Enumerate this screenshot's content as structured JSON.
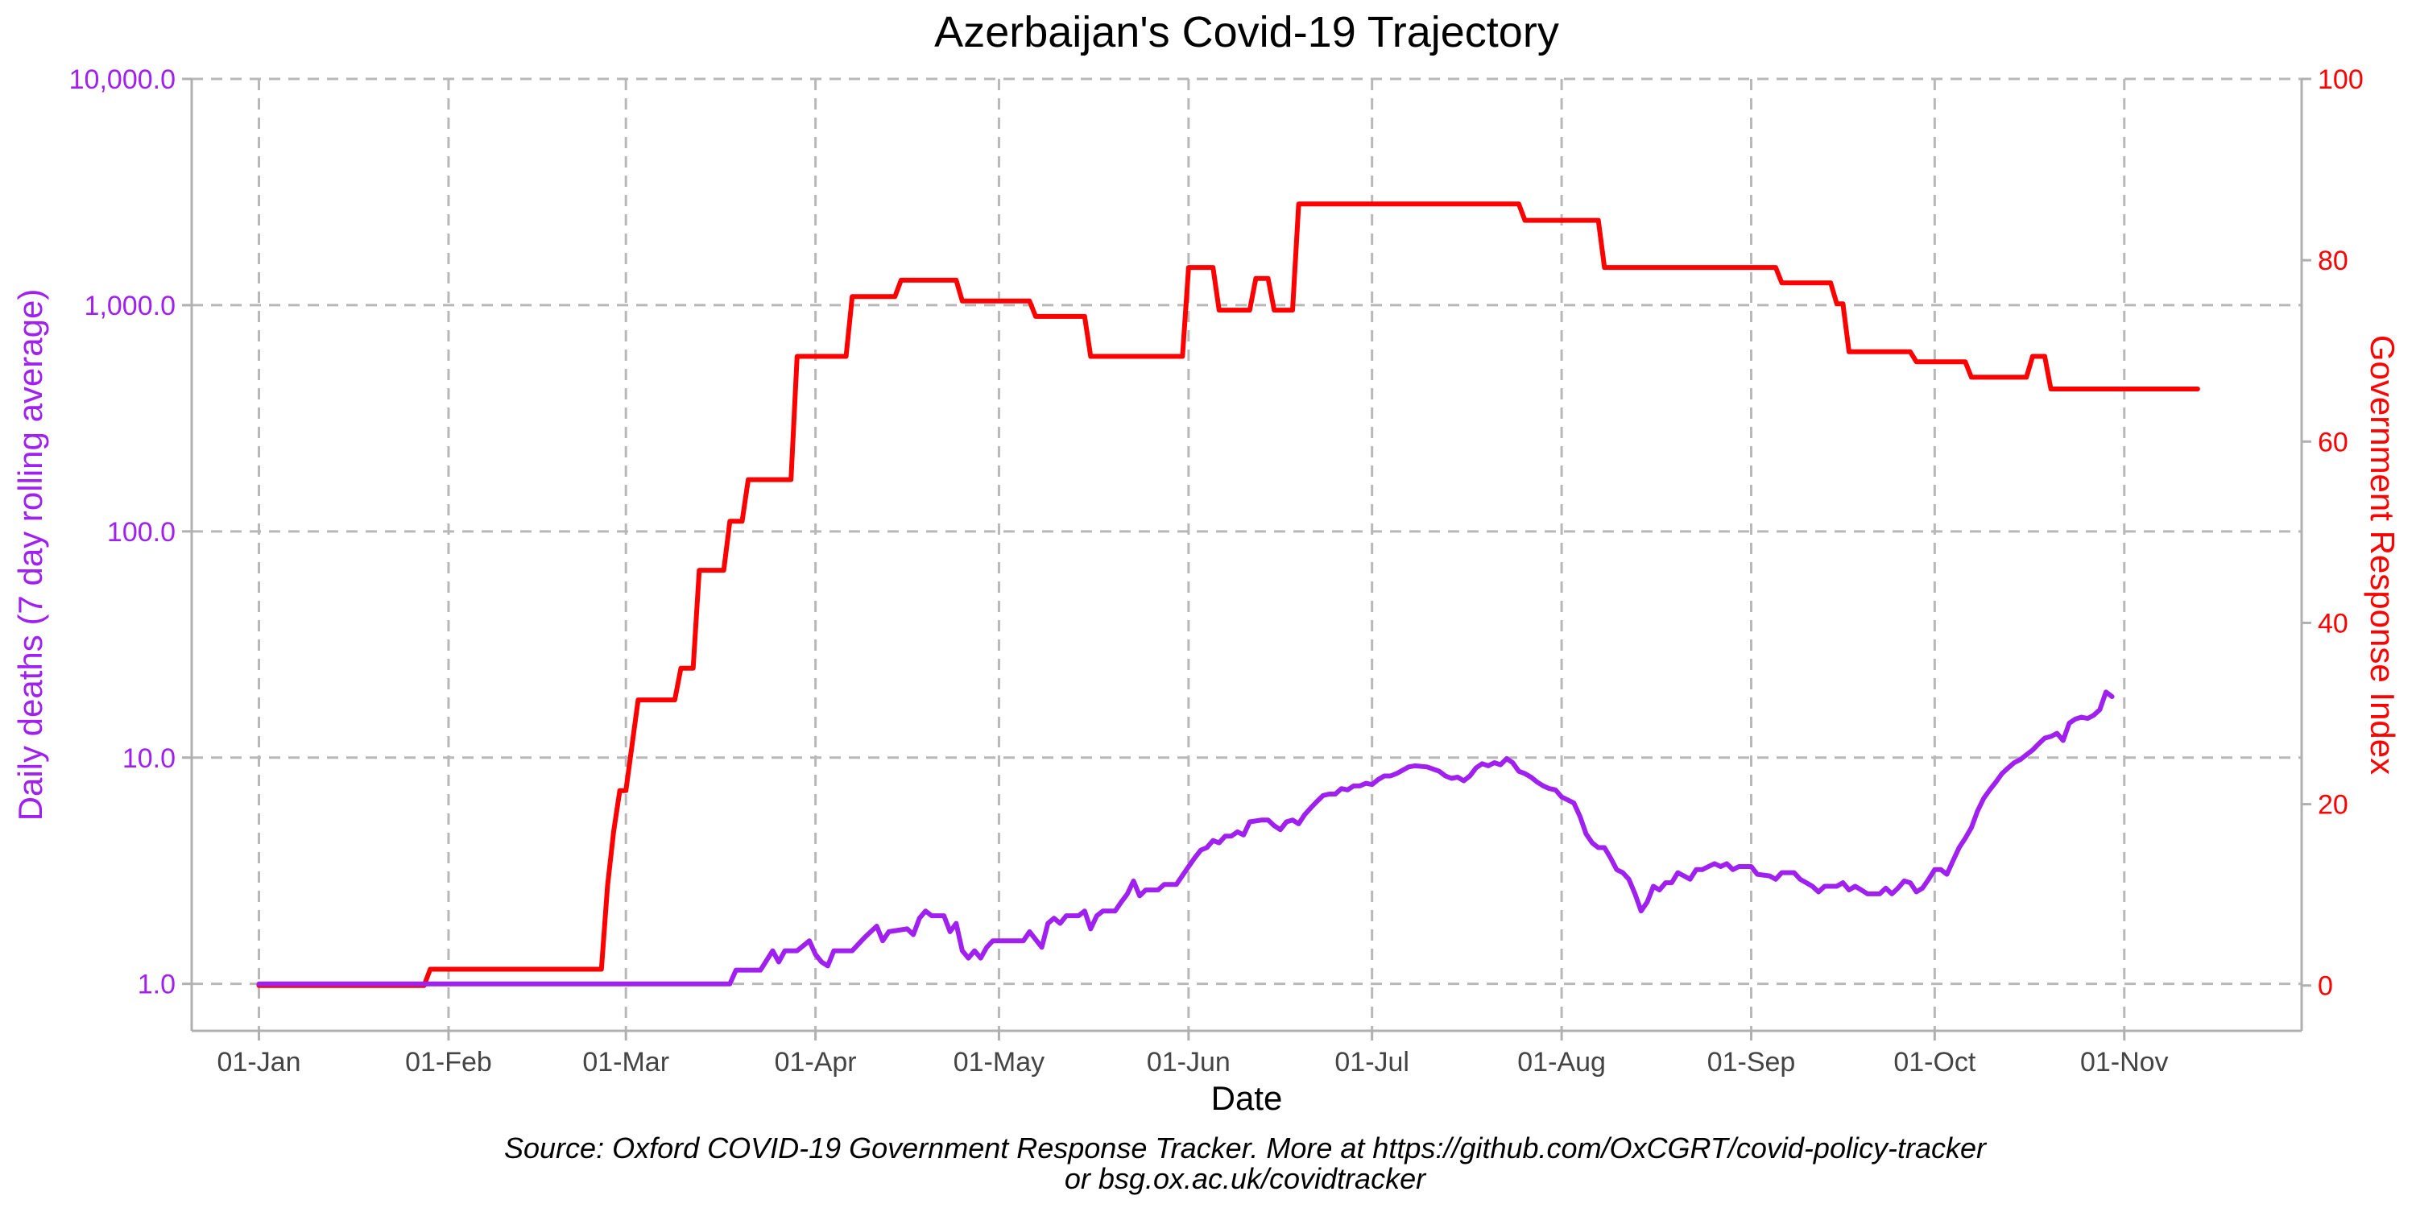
{
  "colors": {
    "deaths": "#a020f0",
    "gri": "#ff0000",
    "text": "#000000",
    "tick_text": "#444444",
    "grid": "#b8b8b8",
    "axis": "#b0b0b0"
  },
  "chart_data": {
    "type": "line",
    "title": "Azerbaijan's Covid-19 Trajectory",
    "xlabel": "Date",
    "ylabel_left": "Daily deaths (7 day rolling average)",
    "ylabel_right": "Government Response Index",
    "x_ticks": [
      "01-Jan",
      "01-Feb",
      "01-Mar",
      "01-Apr",
      "01-May",
      "01-Jun",
      "01-Jul",
      "01-Aug",
      "01-Sep",
      "01-Oct",
      "01-Nov"
    ],
    "y_left_ticks": [
      "1.0",
      "10.0",
      "100.0",
      "1,000.0",
      "10,000.0"
    ],
    "y_left_tick_values": [
      1,
      10,
      100,
      1000,
      10000
    ],
    "y_left_scale": "log10",
    "y_left_range": [
      0.62,
      10000
    ],
    "y_right_ticks": [
      "0",
      "20",
      "40",
      "60",
      "80",
      "100"
    ],
    "y_right_tick_values": [
      0,
      20,
      40,
      60,
      80,
      100
    ],
    "y_right_range": [
      -5,
      100
    ],
    "x_range": [
      "2019-12-21",
      "2020-11-30"
    ],
    "grid": true,
    "series": [
      {
        "name": "Daily deaths (7 day rolling average)",
        "axis": "left",
        "color": "#a020f0",
        "points": [
          [
            "2020-01-01",
            1.0
          ],
          [
            "2020-03-18",
            1.0
          ],
          [
            "2020-03-19",
            1.15
          ],
          [
            "2020-03-23",
            1.15
          ],
          [
            "2020-03-25",
            1.4
          ],
          [
            "2020-03-26",
            1.25
          ],
          [
            "2020-03-27",
            1.4
          ],
          [
            "2020-03-29",
            1.4
          ],
          [
            "2020-03-31",
            1.55
          ],
          [
            "2020-04-01",
            1.35
          ],
          [
            "2020-04-02",
            1.25
          ],
          [
            "2020-04-03",
            1.2
          ],
          [
            "2020-04-04",
            1.4
          ],
          [
            "2020-04-07",
            1.4
          ],
          [
            "2020-04-09",
            1.6
          ],
          [
            "2020-04-11",
            1.8
          ],
          [
            "2020-04-12",
            1.55
          ],
          [
            "2020-04-13",
            1.7
          ],
          [
            "2020-04-16",
            1.75
          ],
          [
            "2020-04-17",
            1.65
          ],
          [
            "2020-04-18",
            1.95
          ],
          [
            "2020-04-19",
            2.1
          ],
          [
            "2020-04-20",
            2.0
          ],
          [
            "2020-04-22",
            2.0
          ],
          [
            "2020-04-23",
            1.7
          ],
          [
            "2020-04-24",
            1.85
          ],
          [
            "2020-04-25",
            1.4
          ],
          [
            "2020-04-26",
            1.3
          ],
          [
            "2020-04-27",
            1.4
          ],
          [
            "2020-04-28",
            1.3
          ],
          [
            "2020-04-29",
            1.45
          ],
          [
            "2020-04-30",
            1.55
          ],
          [
            "2020-05-05",
            1.55
          ],
          [
            "2020-05-06",
            1.7
          ],
          [
            "2020-05-08",
            1.45
          ],
          [
            "2020-05-09",
            1.85
          ],
          [
            "2020-05-10",
            1.95
          ],
          [
            "2020-05-11",
            1.85
          ],
          [
            "2020-05-12",
            2.0
          ],
          [
            "2020-05-14",
            2.0
          ],
          [
            "2020-05-15",
            2.1
          ],
          [
            "2020-05-16",
            1.75
          ],
          [
            "2020-05-17",
            2.0
          ],
          [
            "2020-05-18",
            2.1
          ],
          [
            "2020-05-20",
            2.1
          ],
          [
            "2020-05-21",
            2.3
          ],
          [
            "2020-05-22",
            2.5
          ],
          [
            "2020-05-23",
            2.85
          ],
          [
            "2020-05-24",
            2.45
          ],
          [
            "2020-05-25",
            2.6
          ],
          [
            "2020-05-27",
            2.6
          ],
          [
            "2020-05-28",
            2.75
          ],
          [
            "2020-05-30",
            2.75
          ],
          [
            "2020-06-01",
            3.3
          ],
          [
            "2020-06-02",
            3.6
          ],
          [
            "2020-06-03",
            3.9
          ],
          [
            "2020-06-04",
            4.0
          ],
          [
            "2020-06-05",
            4.3
          ],
          [
            "2020-06-06",
            4.2
          ],
          [
            "2020-06-07",
            4.5
          ],
          [
            "2020-06-08",
            4.5
          ],
          [
            "2020-06-09",
            4.7
          ],
          [
            "2020-06-10",
            4.55
          ],
          [
            "2020-06-11",
            5.2
          ],
          [
            "2020-06-13",
            5.3
          ],
          [
            "2020-06-14",
            5.3
          ],
          [
            "2020-06-15",
            5.0
          ],
          [
            "2020-06-16",
            4.8
          ],
          [
            "2020-06-17",
            5.2
          ],
          [
            "2020-06-18",
            5.3
          ],
          [
            "2020-06-19",
            5.1
          ],
          [
            "2020-06-20",
            5.6
          ],
          [
            "2020-06-21",
            6.0
          ],
          [
            "2020-06-22",
            6.4
          ],
          [
            "2020-06-23",
            6.8
          ],
          [
            "2020-06-24",
            6.9
          ],
          [
            "2020-06-25",
            6.9
          ],
          [
            "2020-06-26",
            7.3
          ],
          [
            "2020-06-27",
            7.2
          ],
          [
            "2020-06-28",
            7.5
          ],
          [
            "2020-06-29",
            7.5
          ],
          [
            "2020-06-30",
            7.7
          ],
          [
            "2020-07-01",
            7.6
          ],
          [
            "2020-07-02",
            8.0
          ],
          [
            "2020-07-03",
            8.3
          ],
          [
            "2020-07-04",
            8.3
          ],
          [
            "2020-07-05",
            8.5
          ],
          [
            "2020-07-06",
            8.8
          ],
          [
            "2020-07-07",
            9.1
          ],
          [
            "2020-07-08",
            9.2
          ],
          [
            "2020-07-10",
            9.1
          ],
          [
            "2020-07-12",
            8.7
          ],
          [
            "2020-07-13",
            8.3
          ],
          [
            "2020-07-14",
            8.1
          ],
          [
            "2020-07-15",
            8.2
          ],
          [
            "2020-07-16",
            7.9
          ],
          [
            "2020-07-17",
            8.3
          ],
          [
            "2020-07-18",
            9.0
          ],
          [
            "2020-07-19",
            9.4
          ],
          [
            "2020-07-20",
            9.2
          ],
          [
            "2020-07-21",
            9.5
          ],
          [
            "2020-07-22",
            9.3
          ],
          [
            "2020-07-23",
            9.9
          ],
          [
            "2020-07-24",
            9.5
          ],
          [
            "2020-07-25",
            8.7
          ],
          [
            "2020-07-26",
            8.5
          ],
          [
            "2020-07-27",
            8.2
          ],
          [
            "2020-07-28",
            7.8
          ],
          [
            "2020-07-29",
            7.5
          ],
          [
            "2020-07-30",
            7.3
          ],
          [
            "2020-07-31",
            7.2
          ],
          [
            "2020-08-01",
            6.7
          ],
          [
            "2020-08-02",
            6.5
          ],
          [
            "2020-08-03",
            6.3
          ],
          [
            "2020-08-04",
            5.5
          ],
          [
            "2020-08-05",
            4.6
          ],
          [
            "2020-08-06",
            4.2
          ],
          [
            "2020-08-07",
            4.0
          ],
          [
            "2020-08-08",
            4.0
          ],
          [
            "2020-08-09",
            3.6
          ],
          [
            "2020-08-10",
            3.2
          ],
          [
            "2020-08-11",
            3.1
          ],
          [
            "2020-08-12",
            2.9
          ],
          [
            "2020-08-13",
            2.5
          ],
          [
            "2020-08-14",
            2.1
          ],
          [
            "2020-08-15",
            2.3
          ],
          [
            "2020-08-16",
            2.7
          ],
          [
            "2020-08-17",
            2.6
          ],
          [
            "2020-08-18",
            2.8
          ],
          [
            "2020-08-19",
            2.8
          ],
          [
            "2020-08-20",
            3.1
          ],
          [
            "2020-08-21",
            3.0
          ],
          [
            "2020-08-22",
            2.9
          ],
          [
            "2020-08-23",
            3.2
          ],
          [
            "2020-08-24",
            3.2
          ],
          [
            "2020-08-25",
            3.3
          ],
          [
            "2020-08-26",
            3.4
          ],
          [
            "2020-08-27",
            3.3
          ],
          [
            "2020-08-28",
            3.4
          ],
          [
            "2020-08-29",
            3.2
          ],
          [
            "2020-08-30",
            3.3
          ],
          [
            "2020-09-01",
            3.3
          ],
          [
            "2020-09-02",
            3.05
          ],
          [
            "2020-09-04",
            3.0
          ],
          [
            "2020-09-05",
            2.9
          ],
          [
            "2020-09-06",
            3.1
          ],
          [
            "2020-09-08",
            3.1
          ],
          [
            "2020-09-09",
            2.9
          ],
          [
            "2020-09-10",
            2.8
          ],
          [
            "2020-09-11",
            2.7
          ],
          [
            "2020-09-12",
            2.55
          ],
          [
            "2020-09-13",
            2.7
          ],
          [
            "2020-09-15",
            2.7
          ],
          [
            "2020-09-16",
            2.8
          ],
          [
            "2020-09-17",
            2.6
          ],
          [
            "2020-09-18",
            2.7
          ],
          [
            "2020-09-19",
            2.6
          ],
          [
            "2020-09-20",
            2.5
          ],
          [
            "2020-09-22",
            2.5
          ],
          [
            "2020-09-23",
            2.65
          ],
          [
            "2020-09-24",
            2.5
          ],
          [
            "2020-09-25",
            2.65
          ],
          [
            "2020-09-26",
            2.85
          ],
          [
            "2020-09-27",
            2.8
          ],
          [
            "2020-09-28",
            2.55
          ],
          [
            "2020-09-29",
            2.65
          ],
          [
            "2020-09-30",
            2.9
          ],
          [
            "2020-10-01",
            3.2
          ],
          [
            "2020-10-02",
            3.2
          ],
          [
            "2020-10-03",
            3.05
          ],
          [
            "2020-10-04",
            3.5
          ],
          [
            "2020-10-05",
            4.0
          ],
          [
            "2020-10-06",
            4.4
          ],
          [
            "2020-10-07",
            4.9
          ],
          [
            "2020-10-08",
            5.8
          ],
          [
            "2020-10-09",
            6.6
          ],
          [
            "2020-10-10",
            7.2
          ],
          [
            "2020-10-11",
            7.8
          ],
          [
            "2020-10-12",
            8.5
          ],
          [
            "2020-10-13",
            9.0
          ],
          [
            "2020-10-14",
            9.5
          ],
          [
            "2020-10-15",
            9.8
          ],
          [
            "2020-10-16",
            10.3
          ],
          [
            "2020-10-17",
            10.8
          ],
          [
            "2020-10-18",
            11.5
          ],
          [
            "2020-10-19",
            12.2
          ],
          [
            "2020-10-20",
            12.4
          ],
          [
            "2020-10-21",
            12.8
          ],
          [
            "2020-10-22",
            11.9
          ],
          [
            "2020-10-23",
            14.2
          ],
          [
            "2020-10-24",
            14.8
          ],
          [
            "2020-10-25",
            15.1
          ],
          [
            "2020-10-26",
            14.9
          ],
          [
            "2020-10-27",
            15.4
          ],
          [
            "2020-10-28",
            16.3
          ],
          [
            "2020-10-29",
            19.5
          ],
          [
            "2020-10-30",
            18.6
          ]
        ]
      },
      {
        "name": "Government Response Index",
        "axis": "right",
        "color": "#ff0000",
        "points": [
          [
            "2020-01-01",
            0.0
          ],
          [
            "2020-01-28",
            0.0
          ],
          [
            "2020-01-29",
            1.8
          ],
          [
            "2020-02-26",
            1.8
          ],
          [
            "2020-02-27",
            11.0
          ],
          [
            "2020-02-28",
            17.0
          ],
          [
            "2020-02-29",
            21.5
          ],
          [
            "2020-03-01",
            21.5
          ],
          [
            "2020-03-03",
            31.5
          ],
          [
            "2020-03-09",
            31.5
          ],
          [
            "2020-03-10",
            35.0
          ],
          [
            "2020-03-12",
            35.0
          ],
          [
            "2020-03-13",
            45.8
          ],
          [
            "2020-03-17",
            45.8
          ],
          [
            "2020-03-18",
            51.2
          ],
          [
            "2020-03-20",
            51.2
          ],
          [
            "2020-03-21",
            55.8
          ],
          [
            "2020-03-28",
            55.8
          ],
          [
            "2020-03-29",
            69.4
          ],
          [
            "2020-04-06",
            69.4
          ],
          [
            "2020-04-07",
            76.0
          ],
          [
            "2020-04-14",
            76.0
          ],
          [
            "2020-04-15",
            77.8
          ],
          [
            "2020-04-24",
            77.8
          ],
          [
            "2020-04-25",
            75.5
          ],
          [
            "2020-05-06",
            75.5
          ],
          [
            "2020-05-07",
            73.8
          ],
          [
            "2020-05-15",
            73.8
          ],
          [
            "2020-05-16",
            69.4
          ],
          [
            "2020-05-31",
            69.4
          ],
          [
            "2020-06-01",
            79.2
          ],
          [
            "2020-06-05",
            79.2
          ],
          [
            "2020-06-06",
            74.5
          ],
          [
            "2020-06-11",
            74.5
          ],
          [
            "2020-06-12",
            78.0
          ],
          [
            "2020-06-14",
            78.0
          ],
          [
            "2020-06-15",
            74.5
          ],
          [
            "2020-06-18",
            74.5
          ],
          [
            "2020-06-19",
            86.2
          ],
          [
            "2020-07-25",
            86.2
          ],
          [
            "2020-07-26",
            84.4
          ],
          [
            "2020-08-07",
            84.4
          ],
          [
            "2020-08-08",
            79.2
          ],
          [
            "2020-09-05",
            79.2
          ],
          [
            "2020-09-06",
            77.5
          ],
          [
            "2020-09-14",
            77.5
          ],
          [
            "2020-09-15",
            75.2
          ],
          [
            "2020-09-16",
            75.2
          ],
          [
            "2020-09-17",
            69.9
          ],
          [
            "2020-09-27",
            69.9
          ],
          [
            "2020-09-28",
            68.8
          ],
          [
            "2020-10-06",
            68.8
          ],
          [
            "2020-10-07",
            67.1
          ],
          [
            "2020-10-16",
            67.1
          ],
          [
            "2020-10-17",
            69.4
          ],
          [
            "2020-10-19",
            69.4
          ],
          [
            "2020-10-20",
            65.8
          ],
          [
            "2020-11-13",
            65.8
          ]
        ]
      }
    ]
  },
  "caption": {
    "line1": "Source: Oxford COVID-19 Government Response Tracker. More at https://github.com/OxCGRT/covid-policy-tracker",
    "line2": "or bsg.ox.ac.uk/covidtracker"
  }
}
